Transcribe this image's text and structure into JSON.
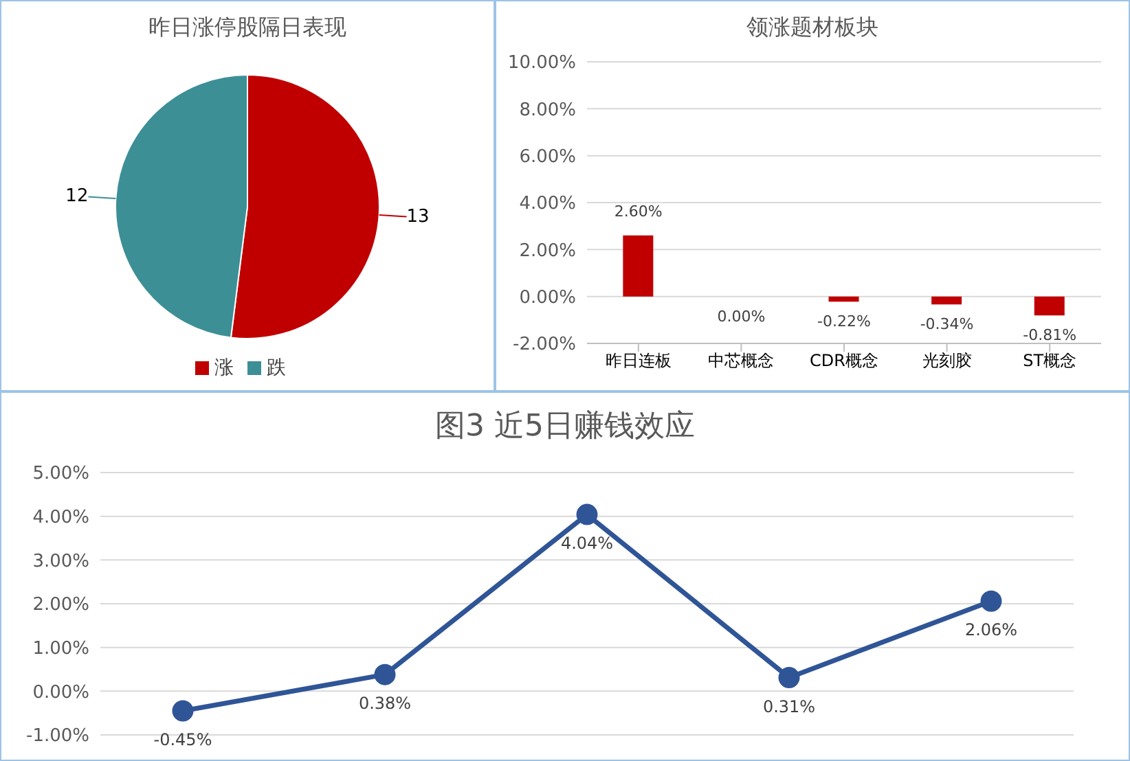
{
  "chart_data": [
    {
      "type": "pie",
      "title": "昨日涨停股隔日表现",
      "categories": [
        "涨",
        "跌"
      ],
      "values": [
        13,
        12
      ],
      "colors": [
        "#c00000",
        "#3d8f96"
      ],
      "data_labels": true,
      "legend": "bottom"
    },
    {
      "type": "bar",
      "title": "领涨题材板块",
      "categories": [
        "昨日连板",
        "中芯概念",
        "CDR概念",
        "光刻胶",
        "ST概念"
      ],
      "values": [
        2.6,
        0,
        -0.22,
        -0.34,
        -0.81
      ],
      "value_labels": [
        "2.60%",
        "0.00%",
        "-0.22%",
        "-0.34%",
        "-0.81%"
      ],
      "color": "#c00000",
      "ylim": [
        -2,
        10
      ],
      "yticks": [
        {
          "value": -2,
          "label": "-2.00%"
        },
        {
          "value": 0,
          "label": "0.00%"
        },
        {
          "value": 2,
          "label": "2.00%"
        },
        {
          "value": 4,
          "label": "4.00%"
        },
        {
          "value": 6,
          "label": "6.00%"
        },
        {
          "value": 8,
          "label": "8.00%"
        },
        {
          "value": 10,
          "label": "10.00%"
        }
      ],
      "grid": "y",
      "legend": false
    },
    {
      "type": "line",
      "title": "图3 近5日赚钱效应",
      "categories": [
        null,
        null,
        null,
        null,
        null
      ],
      "values": [
        -0.45,
        0.38,
        4.04,
        0.31,
        2.06
      ],
      "value_labels": [
        "-0.45%",
        "0.38%",
        "4.04%",
        "0.31%",
        "2.06%"
      ],
      "color": "#2f5597",
      "marker": "circle",
      "ylim": [
        -1,
        5
      ],
      "yticks": [
        {
          "value": -1,
          "label": "-1.00%"
        },
        {
          "value": 0,
          "label": "0.00%"
        },
        {
          "value": 1,
          "label": "1.00%"
        },
        {
          "value": 2,
          "label": "2.00%"
        },
        {
          "value": 3,
          "label": "3.00%"
        },
        {
          "value": 4,
          "label": "4.00%"
        },
        {
          "value": 5,
          "label": "5.00%"
        }
      ],
      "grid": "y",
      "legend": false
    }
  ]
}
